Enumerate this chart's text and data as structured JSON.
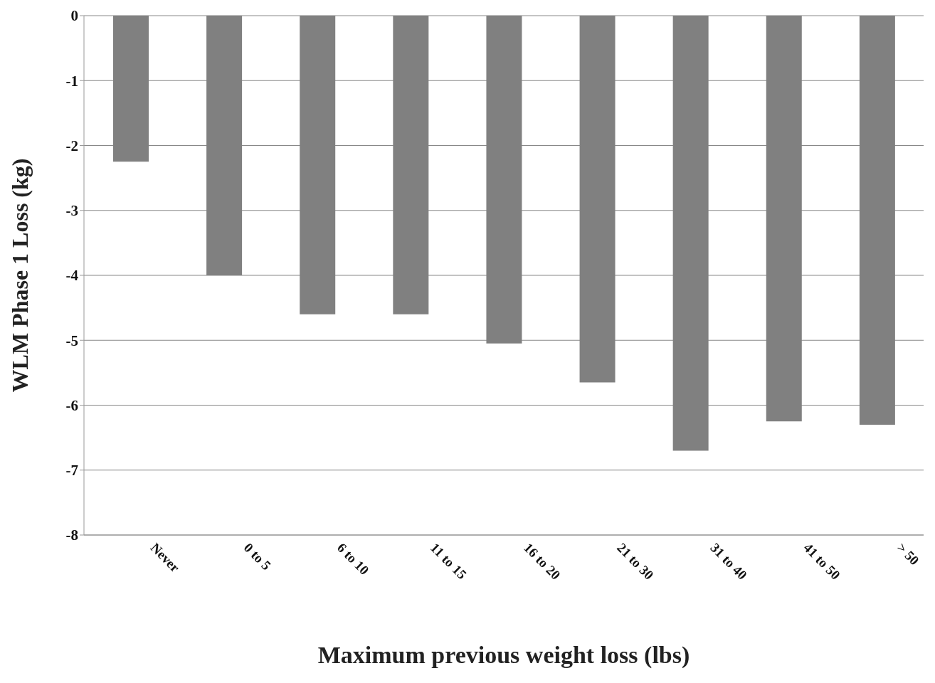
{
  "chart_data": {
    "type": "bar",
    "xlabel": "Maximum previous weight loss (lbs)",
    "ylabel": "WLM Phase 1 Loss (kg)",
    "categories": [
      "Never",
      "0 to 5",
      "6 to 10",
      "11 to 15",
      "16 to 20",
      "21 to 30",
      "31 to 40",
      "41 to 50",
      "> 50"
    ],
    "values": [
      -2.25,
      -4.0,
      -4.6,
      -4.6,
      -5.05,
      -5.65,
      -6.7,
      -6.25,
      -6.3
    ],
    "color": "#808080",
    "ylim": [
      -8,
      0
    ],
    "yticks": [
      -8,
      -7,
      -6,
      -5,
      -4,
      -3,
      -2,
      -1,
      0
    ],
    "grid": "y",
    "legend": false
  }
}
